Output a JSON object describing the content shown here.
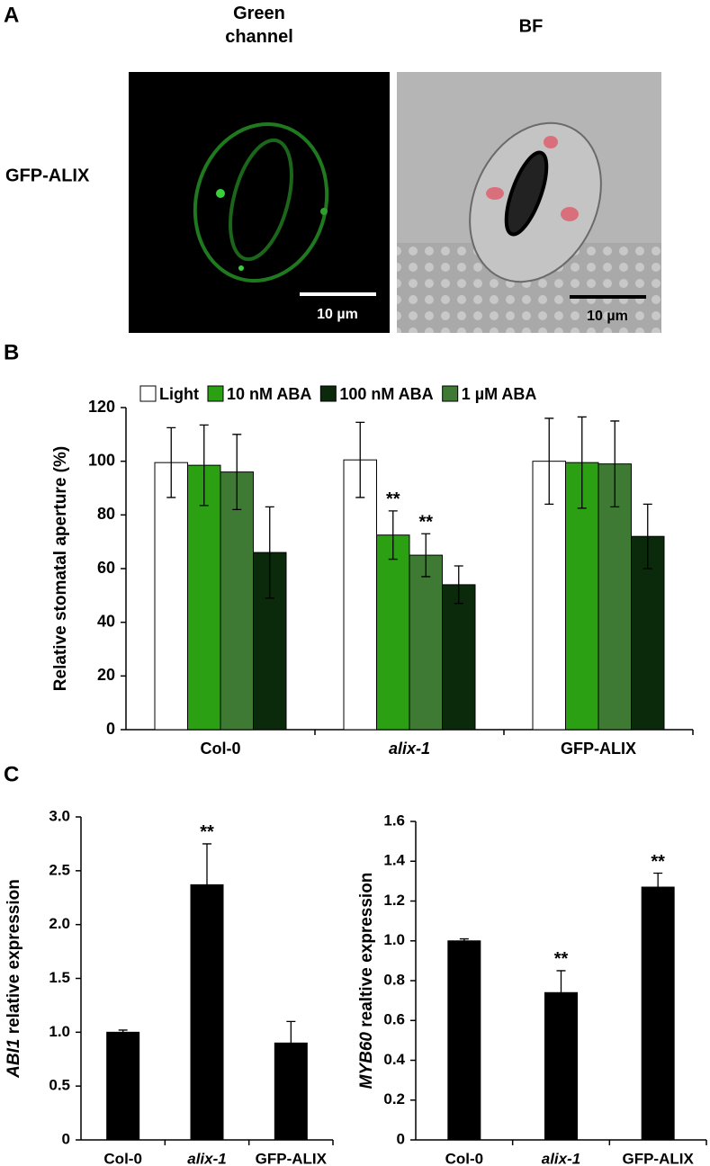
{
  "panel_labels": [
    "A",
    "B",
    "C"
  ],
  "images": {
    "row_label": "GFP-ALIX",
    "columns": [
      {
        "title": "Green channel",
        "scale_bar": "10 µm"
      },
      {
        "title": "BF",
        "scale_bar": "10 µm"
      }
    ]
  },
  "chart_data": [
    {
      "type": "bar",
      "ylabel": [
        "Relative stomatal aperture (%)"
      ],
      "categories": [
        "Col-0",
        "alix-1",
        "GFP-ALIX"
      ],
      "series": [
        {
          "name": "Light",
          "color": "#ffffff",
          "values": [
            99.5,
            100.5,
            100
          ],
          "errors": [
            13,
            14,
            16
          ],
          "annotations": [
            null,
            null,
            null
          ]
        },
        {
          "name": "10 nM ABA",
          "color": "#2aa012",
          "values": [
            98.5,
            72.5,
            99.5
          ],
          "errors": [
            15,
            9,
            17
          ],
          "annotations": [
            null,
            "**",
            null
          ]
        },
        {
          "name": "100 nM ABA",
          "color": "#0b2a0b",
          "values": [
            66,
            54,
            72
          ],
          "errors": [
            17,
            7,
            12
          ],
          "annotations": [
            null,
            null,
            null
          ]
        },
        {
          "name": "1 µM ABA",
          "color": "#3f7a35",
          "values": [
            96,
            65,
            99
          ],
          "errors": [
            14,
            8,
            16
          ],
          "annotations": [
            null,
            "**",
            null
          ]
        }
      ],
      "ylim": [
        0,
        120
      ],
      "yticks": [
        0,
        20,
        40,
        60,
        80,
        100,
        120
      ],
      "legend": "top"
    },
    {
      "type": "bar",
      "ylabel": [
        "ABI1",
        "relative expression"
      ],
      "categories": [
        "Col-0",
        "alix-1",
        "GFP-ALIX"
      ],
      "series": [
        {
          "color": "#000000",
          "values": [
            1.0,
            2.37,
            0.9
          ],
          "errors": [
            0.02,
            0.38,
            0.2
          ],
          "annotations": [
            null,
            "**",
            null
          ]
        }
      ],
      "ylim": [
        0,
        3
      ],
      "yticks": [
        0,
        0.5,
        {
          "value": 1,
          "label": "1.0"
        },
        1.5,
        {
          "value": 2,
          "label": "2.0"
        },
        2.5,
        {
          "value": 3,
          "label": "3.0"
        }
      ]
    },
    {
      "type": "bar",
      "ylabel": [
        "MYB60",
        "realtive expression"
      ],
      "categories": [
        "Col-0",
        "alix-1",
        "GFP-ALIX"
      ],
      "series": [
        {
          "color": "#000000",
          "values": [
            1.0,
            0.74,
            1.27
          ],
          "errors": [
            0.01,
            0.11,
            0.07
          ],
          "annotations": [
            null,
            "**",
            "**"
          ]
        }
      ],
      "ylim": [
        0,
        1.6
      ],
      "yticks": [
        0,
        0.2,
        0.4,
        0.6,
        0.8,
        {
          "value": 1,
          "label": "1.0"
        },
        1.2,
        1.4,
        1.6
      ]
    }
  ]
}
